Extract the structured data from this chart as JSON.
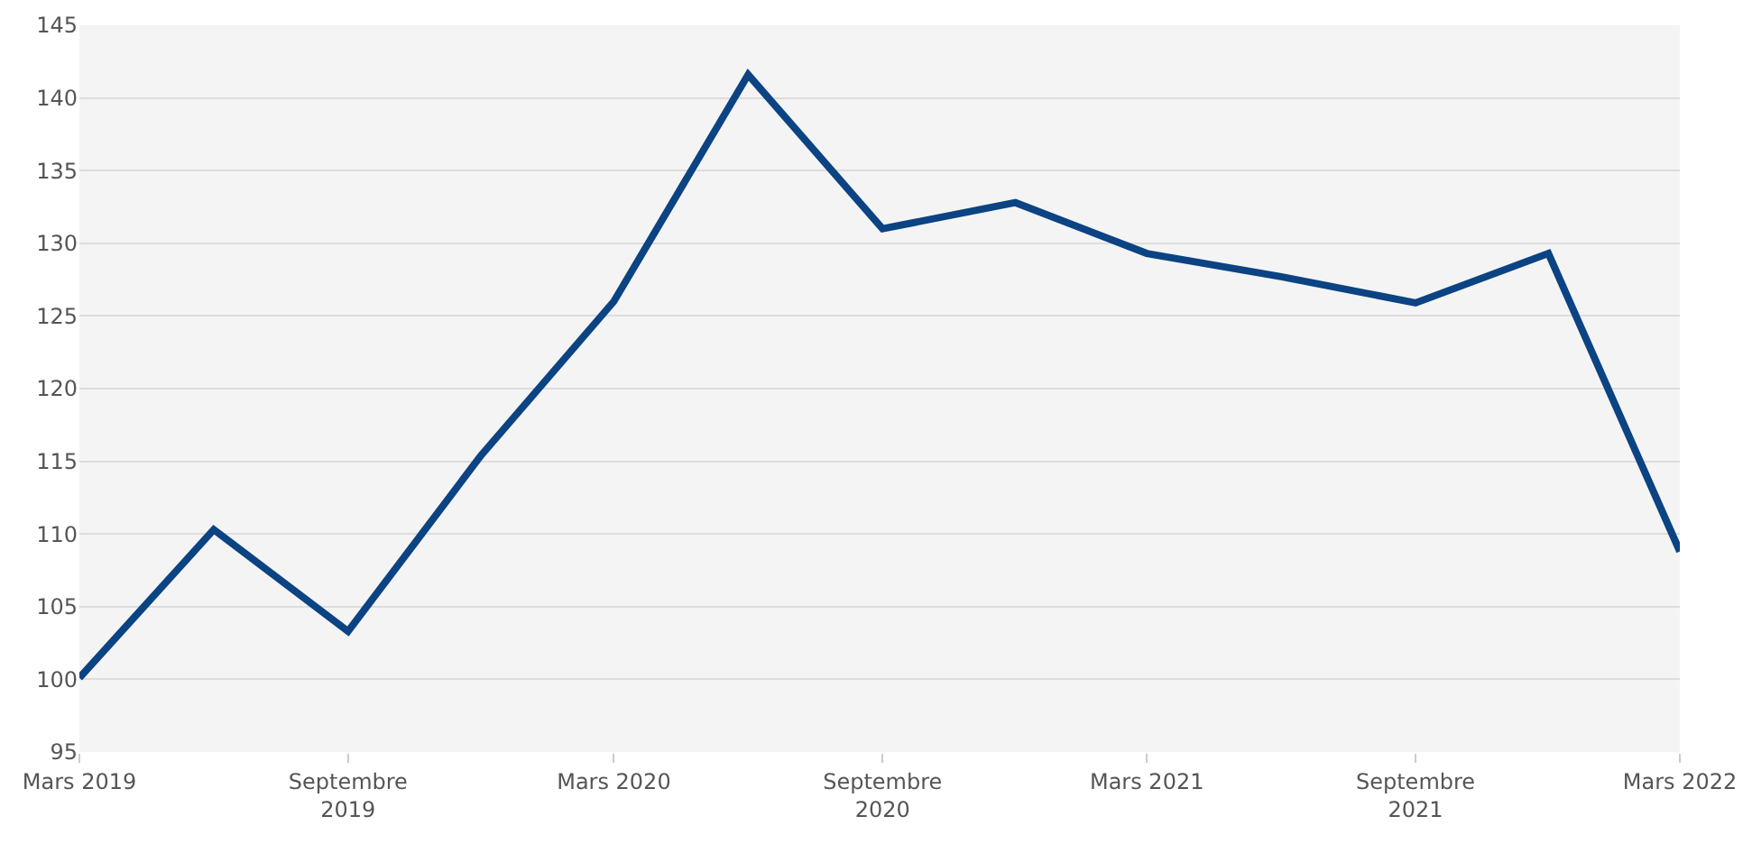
{
  "chart_data": {
    "type": "line",
    "x": [
      "2019-03",
      "2019-06",
      "2019-09",
      "2019-12",
      "2020-03",
      "2020-06",
      "2020-09",
      "2020-12",
      "2021-03",
      "2021-06",
      "2021-09",
      "2021-12",
      "2022-03"
    ],
    "series": [
      {
        "color": "#0b4383",
        "values": [
          100.1,
          110.3,
          103.3,
          115.4,
          126.0,
          141.6,
          131.0,
          132.8,
          129.3,
          127.7,
          125.9,
          129.3,
          108.8
        ]
      }
    ],
    "xlim": [
      "2019-03",
      "2022-03"
    ],
    "xticks": [
      {
        "value": "2019-03",
        "label": "Mars 2019"
      },
      {
        "value": "2019-09",
        "label": "Septembre\n2019"
      },
      {
        "value": "2020-03",
        "label": "Mars 2020"
      },
      {
        "value": "2020-09",
        "label": "Septembre\n2020"
      },
      {
        "value": "2021-03",
        "label": "Mars 2021"
      },
      {
        "value": "2021-09",
        "label": "Septembre\n2021"
      },
      {
        "value": "2022-03",
        "label": "Mars 2022"
      }
    ],
    "ylim": [
      95,
      145
    ],
    "yticks": [
      95,
      100,
      105,
      110,
      115,
      120,
      125,
      130,
      135,
      140,
      145
    ],
    "grid": "y",
    "marker": "none",
    "line_style": "solid"
  }
}
